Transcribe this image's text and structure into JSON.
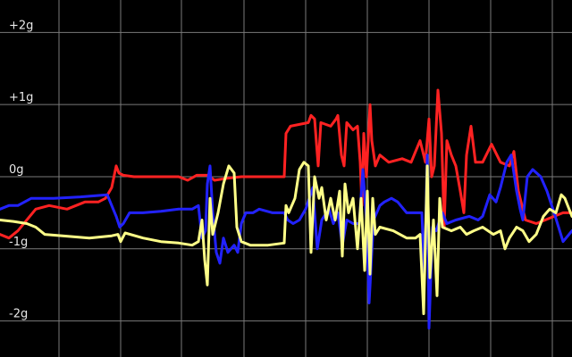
{
  "chart_data": {
    "type": "line",
    "ylim": [
      -2.5,
      2.45
    ],
    "xlim": [
      0,
      640
    ],
    "grid": true,
    "background": "#000000",
    "grid_color": "#7a7a7a",
    "y_ticks": [
      {
        "value": 2,
        "label": "+2g"
      },
      {
        "value": 1,
        "label": "+1g"
      },
      {
        "value": 0,
        "label": "0g"
      },
      {
        "value": -1,
        "label": "-1g"
      },
      {
        "value": -2,
        "label": "-2g"
      }
    ],
    "x_gridlines": [
      66,
      135,
      203,
      273,
      342,
      411,
      480,
      549,
      618
    ],
    "series": [
      {
        "color": "#ff2222",
        "points": [
          [
            0,
            -0.8
          ],
          [
            10,
            -0.85
          ],
          [
            20,
            -0.75
          ],
          [
            40,
            -0.45
          ],
          [
            55,
            -0.4
          ],
          [
            75,
            -0.45
          ],
          [
            95,
            -0.35
          ],
          [
            110,
            -0.35
          ],
          [
            118,
            -0.3
          ],
          [
            125,
            -0.15
          ],
          [
            130,
            0.15
          ],
          [
            133,
            0.05
          ],
          [
            138,
            0.02
          ],
          [
            150,
            0.0
          ],
          [
            200,
            0.0
          ],
          [
            210,
            -0.05
          ],
          [
            220,
            0.02
          ],
          [
            233,
            0.02
          ],
          [
            240,
            -0.05
          ],
          [
            255,
            -0.02
          ],
          [
            270,
            0.0
          ],
          [
            300,
            0.0
          ],
          [
            318,
            0.0
          ],
          [
            320,
            0.6
          ],
          [
            325,
            0.7
          ],
          [
            345,
            0.75
          ],
          [
            348,
            0.85
          ],
          [
            352,
            0.8
          ],
          [
            356,
            0.15
          ],
          [
            359,
            0.75
          ],
          [
            370,
            0.7
          ],
          [
            376,
            0.8
          ],
          [
            378,
            0.85
          ],
          [
            382,
            0.3
          ],
          [
            385,
            0.15
          ],
          [
            388,
            0.75
          ],
          [
            395,
            0.65
          ],
          [
            400,
            0.7
          ],
          [
            403,
            0.2
          ],
          [
            405,
            -0.4
          ],
          [
            407,
            0.6
          ],
          [
            410,
            0.0
          ],
          [
            414,
            1.0
          ],
          [
            416,
            0.5
          ],
          [
            420,
            0.15
          ],
          [
            425,
            0.3
          ],
          [
            435,
            0.2
          ],
          [
            450,
            0.25
          ],
          [
            460,
            0.2
          ],
          [
            470,
            0.5
          ],
          [
            476,
            0.2
          ],
          [
            480,
            0.8
          ],
          [
            483,
            0.0
          ],
          [
            486,
            0.15
          ],
          [
            490,
            1.2
          ],
          [
            494,
            0.6
          ],
          [
            497,
            -0.7
          ],
          [
            500,
            0.5
          ],
          [
            505,
            0.3
          ],
          [
            510,
            0.15
          ],
          [
            515,
            -0.2
          ],
          [
            519,
            -0.5
          ],
          [
            522,
            0.3
          ],
          [
            527,
            0.7
          ],
          [
            532,
            0.2
          ],
          [
            540,
            0.2
          ],
          [
            550,
            0.45
          ],
          [
            560,
            0.2
          ],
          [
            570,
            0.15
          ],
          [
            575,
            0.35
          ],
          [
            580,
            -0.2
          ],
          [
            588,
            -0.6
          ],
          [
            600,
            -0.65
          ],
          [
            610,
            -0.6
          ],
          [
            620,
            -0.55
          ],
          [
            630,
            -0.5
          ],
          [
            640,
            -0.5
          ]
        ]
      },
      {
        "color": "#2222ff",
        "points": [
          [
            0,
            -0.45
          ],
          [
            10,
            -0.4
          ],
          [
            20,
            -0.4
          ],
          [
            35,
            -0.3
          ],
          [
            60,
            -0.3
          ],
          [
            90,
            -0.28
          ],
          [
            120,
            -0.25
          ],
          [
            130,
            -0.55
          ],
          [
            134,
            -0.7
          ],
          [
            138,
            -0.65
          ],
          [
            145,
            -0.5
          ],
          [
            160,
            -0.5
          ],
          [
            180,
            -0.48
          ],
          [
            200,
            -0.45
          ],
          [
            215,
            -0.45
          ],
          [
            222,
            -0.4
          ],
          [
            226,
            -0.85
          ],
          [
            230,
            -0.75
          ],
          [
            232,
            -0.1
          ],
          [
            235,
            0.15
          ],
          [
            238,
            -0.5
          ],
          [
            242,
            -1.05
          ],
          [
            246,
            -1.2
          ],
          [
            250,
            -0.85
          ],
          [
            255,
            -1.05
          ],
          [
            262,
            -0.95
          ],
          [
            266,
            -1.05
          ],
          [
            270,
            -0.65
          ],
          [
            275,
            -0.5
          ],
          [
            283,
            -0.5
          ],
          [
            290,
            -0.45
          ],
          [
            305,
            -0.5
          ],
          [
            318,
            -0.5
          ],
          [
            322,
            -0.6
          ],
          [
            328,
            -0.65
          ],
          [
            335,
            -0.6
          ],
          [
            342,
            -0.45
          ],
          [
            350,
            -0.15
          ],
          [
            355,
            -1.0
          ],
          [
            360,
            -0.6
          ],
          [
            368,
            -0.45
          ],
          [
            373,
            -0.65
          ],
          [
            378,
            -0.5
          ],
          [
            383,
            -0.95
          ],
          [
            388,
            -0.6
          ],
          [
            395,
            -0.65
          ],
          [
            402,
            -0.65
          ],
          [
            406,
            0.1
          ],
          [
            410,
            -0.6
          ],
          [
            413,
            -1.75
          ],
          [
            418,
            -0.6
          ],
          [
            425,
            -0.4
          ],
          [
            430,
            -0.35
          ],
          [
            438,
            -0.3
          ],
          [
            445,
            -0.35
          ],
          [
            455,
            -0.5
          ],
          [
            465,
            -0.5
          ],
          [
            472,
            -0.5
          ],
          [
            475,
            -1.4
          ],
          [
            478,
            0.3
          ],
          [
            480,
            -2.1
          ],
          [
            484,
            -0.7
          ],
          [
            488,
            -0.75
          ],
          [
            495,
            -0.5
          ],
          [
            500,
            -0.65
          ],
          [
            510,
            -0.6
          ],
          [
            525,
            -0.55
          ],
          [
            535,
            -0.6
          ],
          [
            540,
            -0.55
          ],
          [
            548,
            -0.25
          ],
          [
            555,
            -0.35
          ],
          [
            560,
            -0.15
          ],
          [
            567,
            0.2
          ],
          [
            572,
            0.3
          ],
          [
            578,
            -0.2
          ],
          [
            582,
            -0.45
          ],
          [
            585,
            -0.6
          ],
          [
            590,
            0.0
          ],
          [
            596,
            0.1
          ],
          [
            605,
            0.0
          ],
          [
            612,
            -0.2
          ],
          [
            620,
            -0.5
          ],
          [
            630,
            -0.9
          ],
          [
            640,
            -0.75
          ]
        ]
      },
      {
        "color": "#ffff88",
        "points": [
          [
            0,
            -0.6
          ],
          [
            15,
            -0.62
          ],
          [
            30,
            -0.65
          ],
          [
            40,
            -0.7
          ],
          [
            50,
            -0.8
          ],
          [
            70,
            -0.82
          ],
          [
            100,
            -0.85
          ],
          [
            125,
            -0.82
          ],
          [
            132,
            -0.8
          ],
          [
            135,
            -0.9
          ],
          [
            140,
            -0.78
          ],
          [
            160,
            -0.85
          ],
          [
            180,
            -0.9
          ],
          [
            200,
            -0.92
          ],
          [
            215,
            -0.95
          ],
          [
            222,
            -0.9
          ],
          [
            226,
            -0.6
          ],
          [
            229,
            -1.15
          ],
          [
            232,
            -1.5
          ],
          [
            235,
            -0.3
          ],
          [
            238,
            -0.8
          ],
          [
            244,
            -0.5
          ],
          [
            250,
            -0.1
          ],
          [
            256,
            0.15
          ],
          [
            262,
            0.05
          ],
          [
            265,
            -0.7
          ],
          [
            270,
            -0.9
          ],
          [
            280,
            -0.95
          ],
          [
            300,
            -0.95
          ],
          [
            318,
            -0.92
          ],
          [
            320,
            -0.4
          ],
          [
            323,
            -0.5
          ],
          [
            330,
            -0.3
          ],
          [
            335,
            0.1
          ],
          [
            340,
            0.2
          ],
          [
            345,
            0.15
          ],
          [
            348,
            -1.05
          ],
          [
            352,
            0.0
          ],
          [
            357,
            -0.3
          ],
          [
            360,
            -0.15
          ],
          [
            365,
            -0.6
          ],
          [
            370,
            -0.3
          ],
          [
            375,
            -0.6
          ],
          [
            380,
            -0.2
          ],
          [
            383,
            -1.1
          ],
          [
            386,
            -0.1
          ],
          [
            390,
            -0.5
          ],
          [
            395,
            -0.3
          ],
          [
            400,
            -1.0
          ],
          [
            404,
            -0.3
          ],
          [
            408,
            -1.3
          ],
          [
            411,
            -0.2
          ],
          [
            414,
            -1.35
          ],
          [
            417,
            -0.3
          ],
          [
            420,
            -0.8
          ],
          [
            425,
            -0.7
          ],
          [
            440,
            -0.75
          ],
          [
            455,
            -0.85
          ],
          [
            465,
            -0.85
          ],
          [
            470,
            -0.8
          ],
          [
            474,
            -1.9
          ],
          [
            478,
            0.15
          ],
          [
            481,
            -1.4
          ],
          [
            485,
            -0.6
          ],
          [
            489,
            -1.65
          ],
          [
            492,
            -0.3
          ],
          [
            495,
            -0.7
          ],
          [
            505,
            -0.75
          ],
          [
            515,
            -0.7
          ],
          [
            522,
            -0.8
          ],
          [
            530,
            -0.75
          ],
          [
            540,
            -0.7
          ],
          [
            552,
            -0.8
          ],
          [
            560,
            -0.75
          ],
          [
            565,
            -1.0
          ],
          [
            570,
            -0.85
          ],
          [
            578,
            -0.7
          ],
          [
            585,
            -0.75
          ],
          [
            592,
            -0.9
          ],
          [
            600,
            -0.8
          ],
          [
            608,
            -0.55
          ],
          [
            615,
            -0.45
          ],
          [
            622,
            -0.5
          ],
          [
            628,
            -0.25
          ],
          [
            632,
            -0.3
          ],
          [
            640,
            -0.55
          ]
        ]
      }
    ]
  }
}
